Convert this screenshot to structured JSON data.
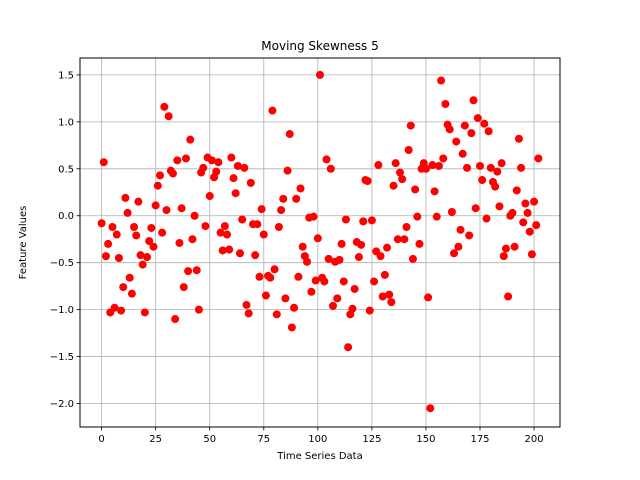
{
  "chart_data": {
    "type": "scatter",
    "title": "Moving Skewness 5",
    "xlabel": "Time Series Data",
    "ylabel": "Feature Values",
    "xlim": [
      -10,
      212
    ],
    "ylim": [
      -2.25,
      1.68
    ],
    "xticks": [
      0,
      25,
      50,
      75,
      100,
      125,
      150,
      175,
      200
    ],
    "yticks": [
      -2.0,
      -1.5,
      -1.0,
      -0.5,
      0.0,
      0.5,
      1.0,
      1.5
    ],
    "xtick_labels": [
      "0",
      "25",
      "50",
      "75",
      "100",
      "125",
      "150",
      "175",
      "200"
    ],
    "ytick_labels": [
      "−2.0",
      "−1.5",
      "−1.0",
      "−0.5",
      "0.0",
      "0.5",
      "1.0",
      "1.5"
    ],
    "grid": true,
    "marker_color": "#ff0000",
    "series": [
      {
        "x": [
          0,
          1,
          2,
          3,
          4,
          5,
          6,
          7,
          8,
          9,
          10,
          11,
          12,
          13,
          14,
          15,
          16,
          17,
          18,
          19,
          20,
          21,
          22,
          23,
          24,
          25,
          26,
          27,
          28,
          29,
          30,
          31,
          32,
          33,
          34,
          35,
          36,
          37,
          38,
          39,
          40,
          41,
          42,
          43,
          44,
          45,
          46,
          47,
          48,
          49,
          50,
          51,
          52,
          53,
          54,
          55,
          56,
          57,
          58,
          59,
          60,
          61,
          62,
          63,
          64,
          65,
          66,
          67,
          68,
          69,
          70,
          71,
          72,
          73,
          74,
          75,
          76,
          77,
          78,
          79,
          80,
          81,
          82,
          83,
          84,
          85,
          86,
          87,
          88,
          89,
          90,
          91,
          92,
          93,
          94,
          95,
          96,
          97,
          98,
          99,
          100,
          101,
          102,
          103,
          104,
          105,
          106,
          107,
          108,
          109,
          110,
          111,
          112,
          113,
          114,
          115,
          116,
          117,
          118,
          119,
          120,
          121,
          122,
          123,
          124,
          125,
          126,
          127,
          128,
          129,
          130,
          131,
          132,
          133,
          134,
          135,
          136,
          137,
          138,
          139,
          140,
          141,
          142,
          143,
          144,
          145,
          146,
          147,
          148,
          149,
          150,
          151,
          152,
          153,
          154,
          155,
          156,
          157,
          158,
          159,
          160,
          161,
          162,
          163,
          164,
          165,
          166,
          167,
          168,
          169,
          170,
          171,
          172,
          173,
          174,
          175,
          176,
          177,
          178,
          179,
          180,
          181,
          182,
          183,
          184,
          185,
          186,
          187,
          188,
          189,
          190,
          191,
          192,
          193,
          194,
          195,
          196,
          197,
          198,
          199,
          200,
          201,
          202
        ],
        "y": [
          -0.08,
          0.57,
          -0.43,
          -0.3,
          -1.03,
          -0.12,
          -0.98,
          -0.2,
          -0.45,
          -1.01,
          -0.76,
          0.19,
          0.03,
          -0.66,
          -0.83,
          -0.12,
          -0.21,
          0.15,
          -0.42,
          -0.52,
          -1.03,
          -0.44,
          -0.27,
          -0.13,
          -0.33,
          0.11,
          0.32,
          0.43,
          -0.18,
          1.16,
          0.06,
          1.06,
          0.48,
          0.45,
          -1.1,
          0.59,
          -0.29,
          0.08,
          -0.76,
          0.61,
          -0.59,
          0.81,
          -0.25,
          0.0,
          -0.58,
          -1.0,
          0.46,
          0.51,
          -0.11,
          0.62,
          0.21,
          0.59,
          0.41,
          0.47,
          0.57,
          -0.18,
          -0.37,
          -0.11,
          -0.2,
          -0.36,
          0.62,
          0.4,
          0.24,
          0.53,
          -0.4,
          -0.04,
          0.51,
          -0.95,
          -1.04,
          0.35,
          -0.09,
          -0.42,
          -0.09,
          -0.65,
          0.07,
          -0.2,
          -0.85,
          -0.64,
          -0.66,
          1.12,
          -0.57,
          -1.05,
          -0.12,
          0.06,
          0.18,
          -0.88,
          0.48,
          0.87,
          -1.19,
          -0.98,
          0.18,
          -0.65,
          0.29,
          -0.33,
          -0.43,
          -0.49,
          -0.02,
          -0.81,
          -0.01,
          -0.69,
          -0.24,
          1.5,
          -0.66,
          -0.7,
          0.6,
          -0.46,
          0.5,
          -0.96,
          -0.49,
          -0.88,
          -0.47,
          -0.3,
          -0.7,
          -0.04,
          -1.4,
          -1.05,
          -0.99,
          -0.78,
          -0.28,
          -0.44,
          -0.31,
          -0.06,
          0.38,
          0.37,
          -1.01,
          -0.05,
          -0.7,
          -0.38,
          0.54,
          -0.43,
          -0.86,
          -0.63,
          -0.34,
          -0.84,
          -0.92,
          0.32,
          0.56,
          -0.25,
          0.46,
          0.39,
          -0.25,
          -0.12,
          0.7,
          0.96,
          -0.46,
          0.28,
          -0.01,
          -0.3,
          0.5,
          0.56,
          0.5,
          -0.87,
          -2.05,
          0.54,
          0.26,
          -0.01,
          0.53,
          1.44,
          0.61,
          1.19,
          0.97,
          0.92,
          0.04,
          -0.4,
          0.79,
          -0.33,
          -0.15,
          0.66,
          0.96,
          0.51,
          -0.21,
          0.88,
          1.23,
          0.08,
          1.04,
          0.53,
          0.38,
          0.98,
          -0.03,
          0.9,
          0.51,
          0.36,
          0.31,
          0.47,
          0.1,
          0.56,
          -0.43,
          -0.35,
          -0.86,
          0.0,
          0.03,
          -0.33,
          0.27,
          0.82,
          0.51,
          -0.07,
          0.13,
          0.03,
          -0.17,
          -0.41,
          0.15,
          -0.1,
          0.61
        ]
      }
    ]
  }
}
